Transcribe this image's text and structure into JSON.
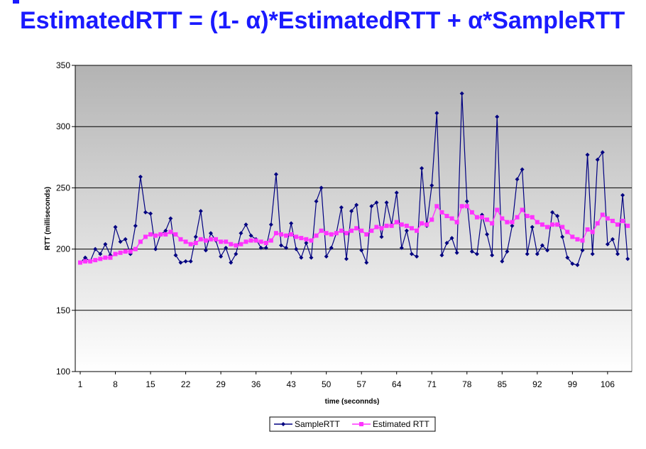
{
  "slide": {
    "title": "EstimatedRTT = (1- α)*EstimatedRTT + α*SampleRTT"
  },
  "chart_data": {
    "type": "line",
    "xlabel": "time (seconnds)",
    "ylabel": "RTT (milliseconds)",
    "ylim": [
      100,
      350
    ],
    "yticks": [
      "100",
      "150",
      "200",
      "250",
      "300",
      "350"
    ],
    "xticks": [
      "1",
      "8",
      "15",
      "22",
      "29",
      "36",
      "43",
      "50",
      "57",
      "64",
      "71",
      "78",
      "85",
      "92",
      "99",
      "106"
    ],
    "grid": true,
    "legend": "bottom",
    "x": [
      1,
      2,
      3,
      4,
      5,
      6,
      7,
      8,
      9,
      10,
      11,
      12,
      13,
      14,
      15,
      16,
      17,
      18,
      19,
      20,
      21,
      22,
      23,
      24,
      25,
      26,
      27,
      28,
      29,
      30,
      31,
      32,
      33,
      34,
      35,
      36,
      37,
      38,
      39,
      40,
      41,
      42,
      43,
      44,
      45,
      46,
      47,
      48,
      49,
      50,
      51,
      52,
      53,
      54,
      55,
      56,
      57,
      58,
      59,
      60,
      61,
      62,
      63,
      64,
      65,
      66,
      67,
      68,
      69,
      70,
      71,
      72,
      73,
      74,
      75,
      76,
      77,
      78,
      79,
      80,
      81,
      82,
      83,
      84,
      85,
      86,
      87,
      88,
      89,
      90,
      91,
      92,
      93,
      94,
      95,
      96,
      97,
      98,
      99,
      100,
      101,
      102,
      103,
      104,
      105,
      106,
      107,
      108,
      109,
      110
    ],
    "series": [
      {
        "name": "SampleRTT",
        "color": "#000080",
        "marker": "diamond",
        "values": [
          189,
          193,
          190,
          200,
          196,
          204,
          195,
          218,
          206,
          208,
          196,
          219,
          259,
          230,
          229,
          200,
          212,
          215,
          225,
          195,
          189,
          190,
          190,
          210,
          231,
          199,
          213,
          207,
          194,
          201,
          189,
          196,
          213,
          220,
          211,
          208,
          201,
          201,
          220,
          261,
          203,
          201,
          221,
          200,
          193,
          205,
          193,
          239,
          250,
          194,
          201,
          213,
          234,
          192,
          231,
          236,
          199,
          189,
          235,
          238,
          210,
          238,
          220,
          246,
          201,
          215,
          196,
          194,
          266,
          219,
          252,
          311,
          195,
          205,
          209,
          197,
          327,
          239,
          198,
          196,
          228,
          212,
          195,
          308,
          190,
          198,
          219,
          257,
          265,
          196,
          218,
          196,
          203,
          199,
          230,
          227,
          210,
          193,
          188,
          187,
          199,
          277,
          196,
          273,
          279,
          204,
          208,
          196,
          244,
          192
        ]
      },
      {
        "name": "Estimated RTT",
        "color": "#ff33ff",
        "marker": "square",
        "values": [
          189,
          190,
          190,
          191,
          192,
          193,
          193,
          196,
          197,
          198,
          198,
          200,
          206,
          210,
          212,
          211,
          212,
          212,
          214,
          212,
          208,
          206,
          204,
          205,
          208,
          207,
          208,
          208,
          206,
          206,
          204,
          203,
          204,
          206,
          207,
          207,
          206,
          205,
          207,
          213,
          212,
          211,
          212,
          210,
          209,
          208,
          207,
          211,
          215,
          213,
          212,
          213,
          215,
          213,
          215,
          217,
          215,
          212,
          215,
          218,
          217,
          219,
          219,
          222,
          220,
          219,
          217,
          215,
          221,
          220,
          224,
          235,
          230,
          227,
          225,
          222,
          235,
          235,
          230,
          226,
          226,
          224,
          221,
          232,
          225,
          222,
          222,
          226,
          232,
          227,
          226,
          222,
          220,
          218,
          220,
          220,
          218,
          214,
          210,
          208,
          207,
          216,
          214,
          221,
          228,
          225,
          223,
          220,
          223,
          219
        ]
      }
    ]
  }
}
